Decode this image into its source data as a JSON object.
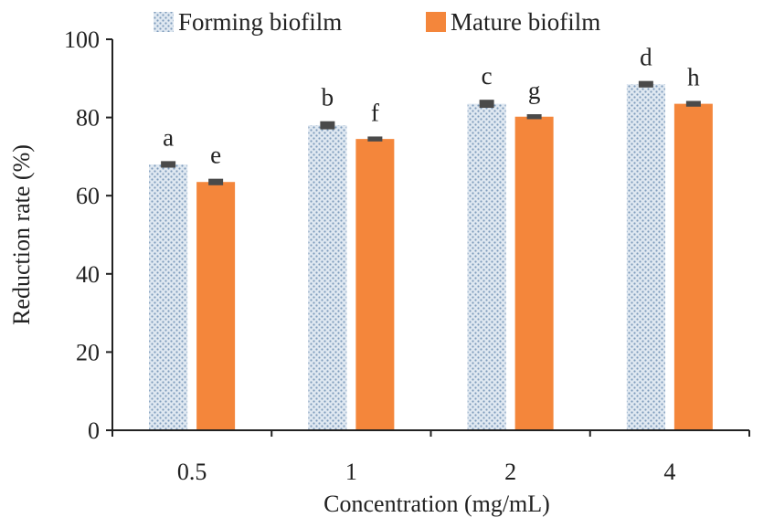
{
  "chart_data": {
    "type": "bar",
    "title": "",
    "xlabel": "Concentration (mg/mL)",
    "ylabel": "Reduction rate (%)",
    "categories": [
      "0.5",
      "1",
      "2",
      "4"
    ],
    "ylim": [
      0,
      100
    ],
    "yticks": [
      "0",
      "20",
      "40",
      "60",
      "80",
      "100"
    ],
    "grid": false,
    "legend_position": "top",
    "series": [
      {
        "name": "Forming biofilm",
        "color": "#c5d6e6",
        "pattern": "dotted",
        "values": [
          68,
          78,
          83.5,
          88.5
        ],
        "errors": [
          0.6,
          0.8,
          0.8,
          0.6
        ],
        "labels": [
          "a",
          "b",
          "c",
          "d"
        ]
      },
      {
        "name": "Mature biofilm",
        "color": "#f4863b",
        "pattern": "solid",
        "values": [
          63.5,
          74.5,
          80.2,
          83.5
        ],
        "errors": [
          0.6,
          0.4,
          0.4,
          0.5
        ],
        "labels": [
          "e",
          "f",
          "g",
          "h"
        ]
      }
    ]
  }
}
